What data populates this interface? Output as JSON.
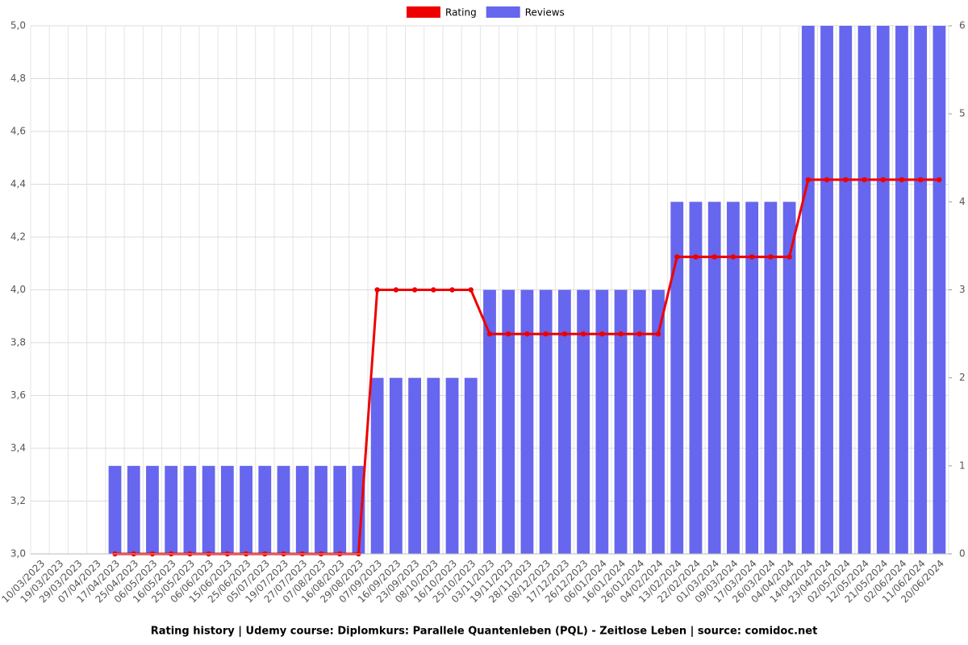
{
  "chart_data": {
    "type": "bar-line",
    "title": "Rating history | Udemy course: Diplomkurs: Parallele Quantenleben (PQL) - Zeitlose Leben | source: comidoc.net",
    "categories": [
      "10/03/2023",
      "19/03/2023",
      "29/03/2023",
      "07/04/2023",
      "17/04/2023",
      "25/04/2023",
      "06/05/2023",
      "16/05/2023",
      "25/05/2023",
      "06/06/2023",
      "15/06/2023",
      "25/06/2023",
      "05/07/2023",
      "19/07/2023",
      "27/07/2023",
      "07/08/2023",
      "16/08/2023",
      "29/08/2023",
      "07/09/2023",
      "16/09/2023",
      "23/09/2023",
      "08/10/2023",
      "16/10/2023",
      "25/10/2023",
      "03/11/2023",
      "19/11/2023",
      "28/11/2023",
      "08/12/2023",
      "17/12/2023",
      "26/12/2023",
      "06/01/2024",
      "16/01/2024",
      "26/01/2024",
      "04/02/2024",
      "13/02/2024",
      "22/02/2024",
      "01/03/2024",
      "09/03/2024",
      "17/03/2024",
      "26/03/2024",
      "04/04/2024",
      "14/04/2024",
      "23/04/2024",
      "02/05/2024",
      "12/05/2024",
      "21/05/2024",
      "02/06/2024",
      "11/06/2024",
      "20/06/2024"
    ],
    "series": [
      {
        "name": "Rating",
        "color": "#ee0000",
        "type": "line",
        "axis": "y",
        "values": [
          null,
          null,
          null,
          null,
          3,
          3,
          3,
          3,
          3,
          3,
          3,
          3,
          3,
          3,
          3,
          3,
          3,
          3,
          4,
          4,
          4,
          4,
          4,
          4,
          3.833,
          3.833,
          3.833,
          3.833,
          3.833,
          3.833,
          3.833,
          3.833,
          3.833,
          3.833,
          4.125,
          4.125,
          4.125,
          4.125,
          4.125,
          4.125,
          4.125,
          4.417,
          4.417,
          4.417,
          4.417,
          4.417,
          4.417,
          4.417,
          4.417
        ]
      },
      {
        "name": "Reviews",
        "color": "#6666ee",
        "type": "bar",
        "axis": "y2",
        "values": [
          null,
          null,
          null,
          null,
          1,
          1,
          1,
          1,
          1,
          1,
          1,
          1,
          1,
          1,
          1,
          1,
          1,
          1,
          2,
          2,
          2,
          2,
          2,
          2,
          3,
          3,
          3,
          3,
          3,
          3,
          3,
          3,
          3,
          3,
          4,
          4,
          4,
          4,
          4,
          4,
          4,
          6,
          6,
          6,
          6,
          6,
          6,
          6,
          6
        ]
      }
    ],
    "ylim": [
      3,
      5
    ],
    "yticks": [
      {
        "value": 3,
        "label": "3,0"
      },
      {
        "value": 3.2,
        "label": "3,2"
      },
      {
        "value": 3.4,
        "label": "3,4"
      },
      {
        "value": 3.6,
        "label": "3,6"
      },
      {
        "value": 3.8,
        "label": "3,8"
      },
      {
        "value": 4,
        "label": "4,0"
      },
      {
        "value": 4.2,
        "label": "4,2"
      },
      {
        "value": 4.4,
        "label": "4,4"
      },
      {
        "value": 4.6,
        "label": "4,6"
      },
      {
        "value": 4.8,
        "label": "4,8"
      },
      {
        "value": 5,
        "label": "5,0"
      }
    ],
    "y2lim": [
      0,
      6
    ],
    "y2ticks": [
      0,
      1,
      2,
      3,
      4,
      5,
      6
    ],
    "grid": true,
    "legend": "top"
  }
}
